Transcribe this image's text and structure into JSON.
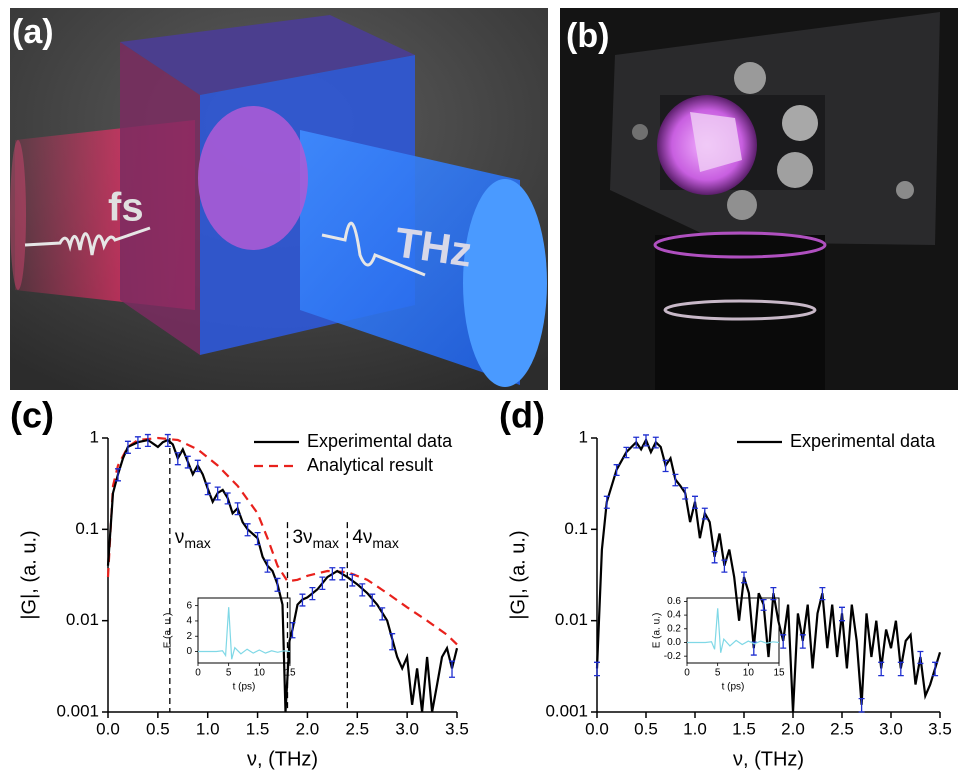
{
  "panels": {
    "a": {
      "label": "(a)",
      "fs": "fs",
      "thz": "THz"
    },
    "b": {
      "label": "(b)"
    }
  },
  "chart_data": [
    {
      "type": "line",
      "panel_label": "(c)",
      "xlabel": "ν, (THz)",
      "ylabel": "|G|, (a. u.)",
      "yscale": "log",
      "legend": "upper right",
      "xlim": [
        0,
        3.5
      ],
      "xticks": [
        {
          "value": 0,
          "label": "0.0"
        },
        0.5,
        {
          "value": 1,
          "label": "1.0"
        },
        1.5,
        {
          "value": 2,
          "label": "2.0"
        },
        2.5,
        {
          "value": 3,
          "label": "3.0"
        },
        3.5
      ],
      "ylim": [
        0.001,
        1
      ],
      "yticks": [
        0.001,
        0.01,
        0.1,
        1
      ],
      "series": [
        {
          "name": "Experimental data",
          "color": "#000000",
          "linestyle": "solid",
          "x": [
            0,
            0.05,
            0.1,
            0.15,
            0.2,
            0.3,
            0.4,
            0.5,
            0.55,
            0.6,
            0.65,
            0.7,
            0.75,
            0.8,
            0.85,
            0.9,
            0.95,
            1.0,
            1.05,
            1.1,
            1.15,
            1.2,
            1.25,
            1.3,
            1.35,
            1.4,
            1.5,
            1.55,
            1.6,
            1.65,
            1.7,
            1.75,
            1.78,
            1.82,
            1.85,
            1.9,
            1.95,
            2.0,
            2.1,
            2.2,
            2.3,
            2.4,
            2.5,
            2.6,
            2.7,
            2.8,
            2.9,
            2.95,
            3.0,
            3.05,
            3.1,
            3.15,
            3.2,
            3.25,
            3.3,
            3.35,
            3.4,
            3.45,
            3.5
          ],
          "values": [
            0.04,
            0.25,
            0.4,
            0.6,
            0.8,
            0.9,
            0.95,
            0.8,
            0.9,
            0.95,
            0.85,
            0.6,
            0.75,
            0.55,
            0.4,
            0.5,
            0.4,
            0.28,
            0.2,
            0.25,
            0.27,
            0.22,
            0.15,
            0.17,
            0.12,
            0.1,
            0.08,
            0.05,
            0.04,
            0.035,
            0.025,
            0.015,
            0.001,
            0.006,
            0.008,
            0.015,
            0.017,
            0.018,
            0.022,
            0.03,
            0.035,
            0.03,
            0.025,
            0.02,
            0.015,
            0.01,
            0.004,
            0.003,
            0.004,
            0.0012,
            0.003,
            0.001,
            0.004,
            0.001,
            0.002,
            0.004,
            0.005,
            0.003,
            0.005
          ]
        },
        {
          "name": "Analytical result",
          "color": "#e8211c",
          "linestyle": "dashed",
          "x": [
            0,
            0.05,
            0.1,
            0.2,
            0.3,
            0.5,
            0.7,
            0.9,
            1.1,
            1.3,
            1.5,
            1.6,
            1.7,
            1.8,
            1.9,
            2.0,
            2.2,
            2.4,
            2.6,
            2.8,
            3.0,
            3.2,
            3.4,
            3.5
          ],
          "values": [
            0.03,
            0.3,
            0.5,
            0.8,
            0.95,
            1,
            0.95,
            0.75,
            0.5,
            0.3,
            0.15,
            0.08,
            0.04,
            0.027,
            0.028,
            0.031,
            0.035,
            0.034,
            0.028,
            0.02,
            0.014,
            0.01,
            0.007,
            0.0055
          ]
        }
      ],
      "error_bars": {
        "color": "#1f2fd0",
        "x": [
          0.1,
          0.2,
          0.3,
          0.4,
          0.6,
          0.7,
          0.8,
          0.9,
          1.0,
          1.1,
          1.2,
          1.3,
          1.4,
          1.5,
          1.6,
          1.7,
          1.85,
          1.95,
          2.05,
          2.15,
          2.25,
          2.35,
          2.45,
          2.55,
          2.65,
          2.75,
          2.85,
          3.45
        ],
        "values": [
          0.4,
          0.8,
          0.9,
          0.95,
          0.95,
          0.6,
          0.55,
          0.5,
          0.28,
          0.25,
          0.22,
          0.17,
          0.1,
          0.08,
          0.04,
          0.025,
          0.008,
          0.017,
          0.02,
          0.026,
          0.033,
          0.033,
          0.028,
          0.022,
          0.017,
          0.012,
          0.006,
          0.003
        ],
        "errors": [
          0.06,
          0.12,
          0.13,
          0.14,
          0.14,
          0.09,
          0.08,
          0.07,
          0.04,
          0.04,
          0.03,
          0.025,
          0.015,
          0.012,
          0.006,
          0.004,
          0.0015,
          0.0025,
          0.003,
          0.004,
          0.005,
          0.005,
          0.004,
          0.0033,
          0.0025,
          0.0018,
          0.0012,
          0.0006
        ]
      },
      "vlines": [
        {
          "x": 0.62,
          "ymax": 1,
          "text": "ν",
          "sub": "max"
        },
        {
          "x": 1.8,
          "ymax": 0.12,
          "text": "3ν",
          "sub": "max"
        },
        {
          "x": 2.4,
          "ymax": 0.12,
          "text": "4ν",
          "sub": "max"
        }
      ],
      "inset": {
        "type": "line",
        "xlabel": "t (ps)",
        "ylabel": "E (a. u.)",
        "color": "#7fd8e6",
        "xlim": [
          0,
          15
        ],
        "xticks": [
          0,
          5,
          10,
          15
        ],
        "ylim": [
          -1.5,
          7
        ],
        "yticks": [
          0,
          2,
          4,
          6
        ],
        "x": [
          0,
          1,
          2,
          3,
          4,
          4.5,
          5,
          5.5,
          6,
          7,
          8,
          9,
          10,
          11,
          12,
          13,
          14,
          15
        ],
        "values": [
          0,
          0,
          0,
          0,
          0.1,
          -0.5,
          5.8,
          -1,
          0.5,
          -0.3,
          0.3,
          -0.2,
          0.2,
          -0.2,
          0.1,
          -0.1,
          0.1,
          0
        ]
      }
    },
    {
      "type": "line",
      "panel_label": "(d)",
      "xlabel": "ν, (THz)",
      "ylabel": "|G|, (a. u.)",
      "yscale": "log",
      "legend": "upper right",
      "xlim": [
        0,
        3.5
      ],
      "xticks": [
        {
          "value": 0,
          "label": "0.0"
        },
        0.5,
        {
          "value": 1,
          "label": "1.0"
        },
        1.5,
        {
          "value": 2,
          "label": "2.0"
        },
        2.5,
        {
          "value": 3,
          "label": "3.0"
        },
        3.5
      ],
      "ylim": [
        0.001,
        1
      ],
      "yticks": [
        0.001,
        0.01,
        0.1,
        1
      ],
      "series": [
        {
          "name": "Experimental data",
          "color": "#000000",
          "linestyle": "solid",
          "x": [
            0,
            0.05,
            0.1,
            0.15,
            0.2,
            0.3,
            0.4,
            0.45,
            0.5,
            0.55,
            0.6,
            0.65,
            0.7,
            0.75,
            0.8,
            0.85,
            0.9,
            0.95,
            1.0,
            1.05,
            1.1,
            1.15,
            1.2,
            1.25,
            1.3,
            1.35,
            1.4,
            1.45,
            1.5,
            1.55,
            1.6,
            1.65,
            1.7,
            1.75,
            1.8,
            1.85,
            1.9,
            1.95,
            2.0,
            2.05,
            2.1,
            2.15,
            2.2,
            2.25,
            2.3,
            2.35,
            2.4,
            2.45,
            2.5,
            2.55,
            2.6,
            2.65,
            2.7,
            2.75,
            2.8,
            2.85,
            2.9,
            2.95,
            3.0,
            3.05,
            3.1,
            3.15,
            3.2,
            3.25,
            3.3,
            3.35,
            3.4,
            3.45,
            3.5
          ],
          "values": [
            0.003,
            0.06,
            0.2,
            0.3,
            0.45,
            0.7,
            0.9,
            0.75,
            0.95,
            0.7,
            0.9,
            0.8,
            0.5,
            0.6,
            0.35,
            0.3,
            0.25,
            0.12,
            0.2,
            0.08,
            0.15,
            0.12,
            0.05,
            0.09,
            0.04,
            0.06,
            0.03,
            0.01,
            0.03,
            0.02,
            0.005,
            0.02,
            0.015,
            0.004,
            0.02,
            0.01,
            0.006,
            0.015,
            0.001,
            0.012,
            0.006,
            0.015,
            0.003,
            0.012,
            0.02,
            0.005,
            0.015,
            0.004,
            0.012,
            0.003,
            0.015,
            0.006,
            0.0012,
            0.012,
            0.004,
            0.01,
            0.003,
            0.008,
            0.005,
            0.01,
            0.003,
            0.006,
            0.007,
            0.002,
            0.004,
            0.0015,
            0.002,
            0.003,
            0.0045
          ]
        }
      ],
      "error_bars": {
        "color": "#1f2fd0",
        "x": [
          0,
          0.1,
          0.2,
          0.3,
          0.4,
          0.5,
          0.6,
          0.7,
          0.8,
          0.9,
          1.0,
          1.1,
          1.2,
          1.3,
          1.5,
          1.6,
          1.7,
          1.8,
          1.9,
          2.1,
          2.3,
          2.5,
          2.7,
          2.9,
          3.1,
          3.3,
          3.45
        ],
        "values": [
          0.003,
          0.2,
          0.45,
          0.7,
          0.9,
          0.95,
          0.9,
          0.5,
          0.35,
          0.25,
          0.2,
          0.15,
          0.05,
          0.04,
          0.03,
          0.005,
          0.015,
          0.02,
          0.006,
          0.006,
          0.02,
          0.012,
          0.0012,
          0.003,
          0.003,
          0.004,
          0.003
        ],
        "errors": [
          0.0005,
          0.03,
          0.06,
          0.09,
          0.12,
          0.13,
          0.12,
          0.07,
          0.05,
          0.035,
          0.03,
          0.02,
          0.007,
          0.006,
          0.004,
          0.0008,
          0.002,
          0.003,
          0.001,
          0.001,
          0.003,
          0.002,
          0.0002,
          0.0005,
          0.0005,
          0.0006,
          0.0005
        ]
      },
      "inset": {
        "type": "line",
        "xlabel": "t (ps)",
        "ylabel": "E (a. u.)",
        "color": "#7fd8e6",
        "xlim": [
          0,
          15
        ],
        "xticks": [
          0,
          5,
          10,
          15
        ],
        "ylim": [
          -0.3,
          0.65
        ],
        "yticks": [
          -0.2,
          {
            "value": 0,
            "label": "0.0"
          },
          0.2,
          0.4,
          0.6
        ],
        "x": [
          0,
          1,
          2,
          3,
          4,
          4.5,
          5,
          5.5,
          6,
          7,
          8,
          9,
          10,
          11,
          12,
          13,
          14,
          15
        ],
        "values": [
          0,
          0,
          0,
          0,
          0.01,
          -0.1,
          0.5,
          -0.15,
          0.05,
          -0.05,
          0.03,
          -0.03,
          0.02,
          -0.02,
          0.02,
          -0.01,
          0.01,
          0
        ]
      }
    }
  ]
}
